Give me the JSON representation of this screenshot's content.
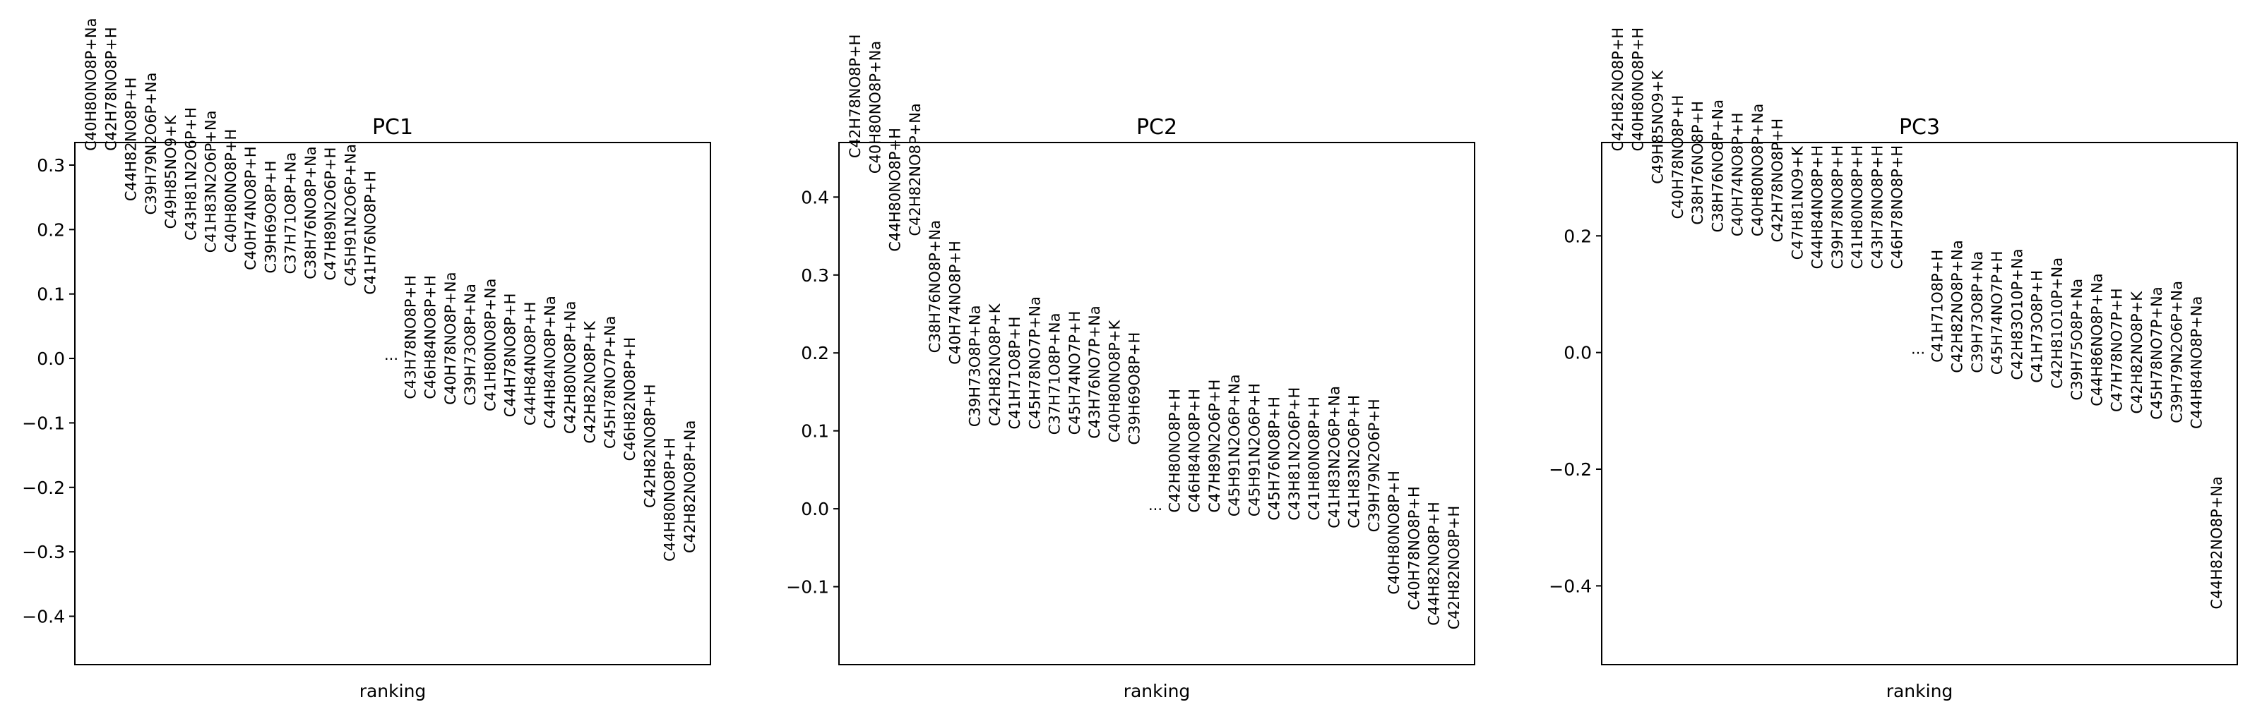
{
  "chart_data": [
    {
      "type": "scatter",
      "title": "PC1",
      "xlabel": "ranking",
      "ylabel": "",
      "ylim": [
        -0.475,
        0.335
      ],
      "yticks": [
        0.3,
        0.2,
        0.1,
        0.0,
        -0.1,
        -0.2,
        -0.3,
        -0.4
      ],
      "ytick_labels": [
        "0.3",
        "0.2",
        "0.1",
        "0.0",
        "−0.1",
        "−0.2",
        "−0.3",
        "−0.4"
      ],
      "grid": false,
      "ellipsis": "...",
      "top": [
        {
          "label": "C40H80NO8P+Na",
          "value": 0.322
        },
        {
          "label": "C42H78NO8P+H",
          "value": 0.322
        },
        {
          "label": "C44H82NO8P+H",
          "value": 0.244
        },
        {
          "label": "C39H79N2O6P+Na",
          "value": 0.223
        },
        {
          "label": "C49H85NO9+K",
          "value": 0.201
        },
        {
          "label": "C43H81N2O6P+H",
          "value": 0.183
        },
        {
          "label": "C41H83N2O6P+Na",
          "value": 0.164
        },
        {
          "label": "C40H80NO8P+H",
          "value": 0.164
        },
        {
          "label": "C40H74NO8P+H",
          "value": 0.137
        },
        {
          "label": "C39H69O8P+H",
          "value": 0.132
        },
        {
          "label": "C37H71O8P+Na",
          "value": 0.131
        },
        {
          "label": "C38H76NO8P+Na",
          "value": 0.123
        },
        {
          "label": "C47H89N2O6P+H",
          "value": 0.121
        },
        {
          "label": "C45H91N2O6P+Na",
          "value": 0.112
        },
        {
          "label": "C41H76NO8P+H",
          "value": 0.099
        }
      ],
      "bottom": [
        {
          "label": "C43H78NO8P+H",
          "value": -0.063
        },
        {
          "label": "C46H84NO8P+H",
          "value": -0.063
        },
        {
          "label": "C40H78NO8P+Na",
          "value": -0.072
        },
        {
          "label": "C39H73O8P+Na",
          "value": -0.073
        },
        {
          "label": "C41H80NO8P+Na",
          "value": -0.082
        },
        {
          "label": "C44H78NO8P+H",
          "value": -0.091
        },
        {
          "label": "C44H84NO8P+H",
          "value": -0.104
        },
        {
          "label": "C44H84NO8P+Na",
          "value": -0.109
        },
        {
          "label": "C42H80NO8P+Na",
          "value": -0.117
        },
        {
          "label": "C42H82NO8P+K",
          "value": -0.132
        },
        {
          "label": "C45H78NO7P+Na",
          "value": -0.14
        },
        {
          "label": "C46H82NO8P+H",
          "value": -0.159
        },
        {
          "label": "C42H82NO8P+H",
          "value": -0.232
        },
        {
          "label": "C44H80NO8P+H",
          "value": -0.315
        },
        {
          "label": "C42H82NO8P+Na",
          "value": -0.302
        }
      ]
    },
    {
      "type": "scatter",
      "title": "PC2",
      "xlabel": "ranking",
      "ylabel": "",
      "ylim": [
        -0.2,
        0.47
      ],
      "yticks": [
        0.4,
        0.3,
        0.2,
        0.1,
        0.0,
        -0.1
      ],
      "ytick_labels": [
        "0.4",
        "0.3",
        "0.2",
        "0.1",
        "0.0",
        "−0.1"
      ],
      "grid": false,
      "ellipsis": "...",
      "top": [
        {
          "label": "C42H78NO8P+H",
          "value": 0.45
        },
        {
          "label": "C40H80NO8P+Na",
          "value": 0.43
        },
        {
          "label": "C44H80NO8P+H",
          "value": 0.33
        },
        {
          "label": "C42H82NO8P+Na",
          "value": 0.35
        },
        {
          "label": "C38H76NO8P+Na",
          "value": 0.2
        },
        {
          "label": "C40H74NO8P+H",
          "value": 0.185
        },
        {
          "label": "C39H73O8P+Na",
          "value": 0.105
        },
        {
          "label": "C42H82NO8P+K",
          "value": 0.106
        },
        {
          "label": "C41H71O8P+H",
          "value": 0.102
        },
        {
          "label": "C45H78NO7P+Na",
          "value": 0.102
        },
        {
          "label": "C37H71O8P+Na",
          "value": 0.095
        },
        {
          "label": "C45H74NO7P+H",
          "value": 0.095
        },
        {
          "label": "C43H76NO7P+Na",
          "value": 0.09
        },
        {
          "label": "C40H80NO8P+K",
          "value": 0.085
        },
        {
          "label": "C39H69O8P+H",
          "value": 0.082
        }
      ],
      "bottom": [
        {
          "label": "C42H80NO8P+H",
          "value": -0.005
        },
        {
          "label": "C46H84NO8P+H",
          "value": -0.005
        },
        {
          "label": "C47H89N2O6P+H",
          "value": -0.005
        },
        {
          "label": "C45H91N2O6P+Na",
          "value": -0.01
        },
        {
          "label": "C45H91N2O6P+H",
          "value": -0.01
        },
        {
          "label": "C45H76NO8P+H",
          "value": -0.015
        },
        {
          "label": "C43H81N2O6P+H",
          "value": -0.015
        },
        {
          "label": "C41H80NO8P+H",
          "value": -0.015
        },
        {
          "label": "C41H83N2O6P+Na",
          "value": -0.025
        },
        {
          "label": "C41H83N2O6P+H",
          "value": -0.025
        },
        {
          "label": "C39H79N2O6P+H",
          "value": -0.03
        },
        {
          "label": "C40H80NO8P+H",
          "value": -0.11
        },
        {
          "label": "C40H78NO8P+H",
          "value": -0.13
        },
        {
          "label": "C44H82NO8P+H",
          "value": -0.15
        },
        {
          "label": "C42H82NO8P+H",
          "value": -0.155
        }
      ]
    },
    {
      "type": "scatter",
      "title": "PC3",
      "xlabel": "ranking",
      "ylabel": "",
      "ylim": [
        -0.535,
        0.36
      ],
      "yticks": [
        0.2,
        0.0,
        -0.2,
        -0.4
      ],
      "ytick_labels": [
        "0.2",
        "0.0",
        "−0.2",
        "−0.4"
      ],
      "grid": false,
      "ellipsis": "...",
      "top": [
        {
          "label": "C42H82NO8P+H",
          "value": 0.345
        },
        {
          "label": "C40H80NO8P+H",
          "value": 0.345
        },
        {
          "label": "C49H85NO9+K",
          "value": 0.289
        },
        {
          "label": "C40H78NO8P+H",
          "value": 0.229
        },
        {
          "label": "C38H76NO8P+H",
          "value": 0.219
        },
        {
          "label": "C38H76NO8P+Na",
          "value": 0.206
        },
        {
          "label": "C40H74NO8P+H",
          "value": 0.199
        },
        {
          "label": "C40H80NO8P+Na",
          "value": 0.199
        },
        {
          "label": "C42H78NO8P+H",
          "value": 0.189
        },
        {
          "label": "C47H81NO9+K",
          "value": 0.159
        },
        {
          "label": "C44H84NO8P+H",
          "value": 0.143
        },
        {
          "label": "C39H78NO8P+H",
          "value": 0.143
        },
        {
          "label": "C41H80NO8P+H",
          "value": 0.143
        },
        {
          "label": "C43H78NO8P+H",
          "value": 0.143
        },
        {
          "label": "C46H78NO8P+H",
          "value": 0.143
        }
      ],
      "bottom": [
        {
          "label": "C41H71O8P+H",
          "value": -0.017
        },
        {
          "label": "C42H82NO8P+Na",
          "value": -0.035
        },
        {
          "label": "C39H73O8P+Na",
          "value": -0.035
        },
        {
          "label": "C45H74NO7P+H",
          "value": -0.038
        },
        {
          "label": "C42H83O10P+Na",
          "value": -0.047
        },
        {
          "label": "C41H73O8P+H",
          "value": -0.052
        },
        {
          "label": "C42H81O10P+Na",
          "value": -0.062
        },
        {
          "label": "C39H75O8P+Na",
          "value": -0.082
        },
        {
          "label": "C44H86NO8P+Na",
          "value": -0.092
        },
        {
          "label": "C47H78NO7P+H",
          "value": -0.102
        },
        {
          "label": "C42H82NO8P+K",
          "value": -0.105
        },
        {
          "label": "C45H78NO7P+Na",
          "value": -0.115
        },
        {
          "label": "C39H79N2O6P+Na",
          "value": -0.121
        },
        {
          "label": "C44H84NO8P+Na",
          "value": -0.131
        },
        {
          "label": "C44H82NO8P+Na",
          "value": -0.44
        }
      ]
    }
  ]
}
